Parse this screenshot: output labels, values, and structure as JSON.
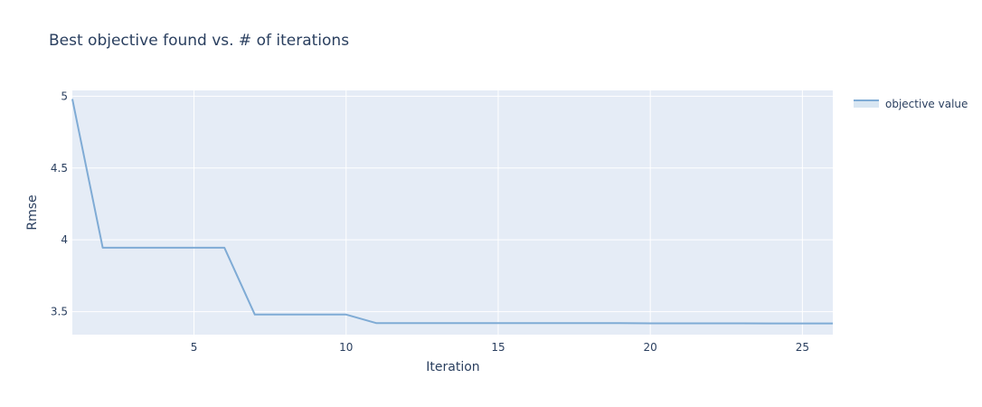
{
  "chart_data": {
    "type": "line",
    "title": "Best objective found vs. # of iterations",
    "xlabel": "Iteration",
    "ylabel": "Rmse",
    "xlim": [
      1,
      26
    ],
    "ylim": [
      3.34,
      5.04
    ],
    "xticks": [
      5,
      10,
      15,
      20,
      25
    ],
    "yticks": [
      3.5,
      4,
      4.5,
      5
    ],
    "ytick_labels": [
      "3.5",
      "4",
      "4.5",
      "5"
    ],
    "grid": true,
    "legend_position": "top-right",
    "series": [
      {
        "name": "objective value",
        "color": "#7fabd5",
        "x": [
          1,
          2,
          3,
          4,
          5,
          6,
          7,
          8,
          9,
          10,
          11,
          12,
          13,
          14,
          15,
          16,
          17,
          18,
          19,
          20,
          21,
          22,
          23,
          24,
          25,
          26
        ],
        "y": [
          4.98,
          3.945,
          3.945,
          3.945,
          3.945,
          3.945,
          3.48,
          3.48,
          3.48,
          3.48,
          3.42,
          3.42,
          3.42,
          3.42,
          3.42,
          3.42,
          3.42,
          3.42,
          3.42,
          3.419,
          3.419,
          3.419,
          3.419,
          3.418,
          3.418,
          3.418
        ]
      }
    ]
  }
}
